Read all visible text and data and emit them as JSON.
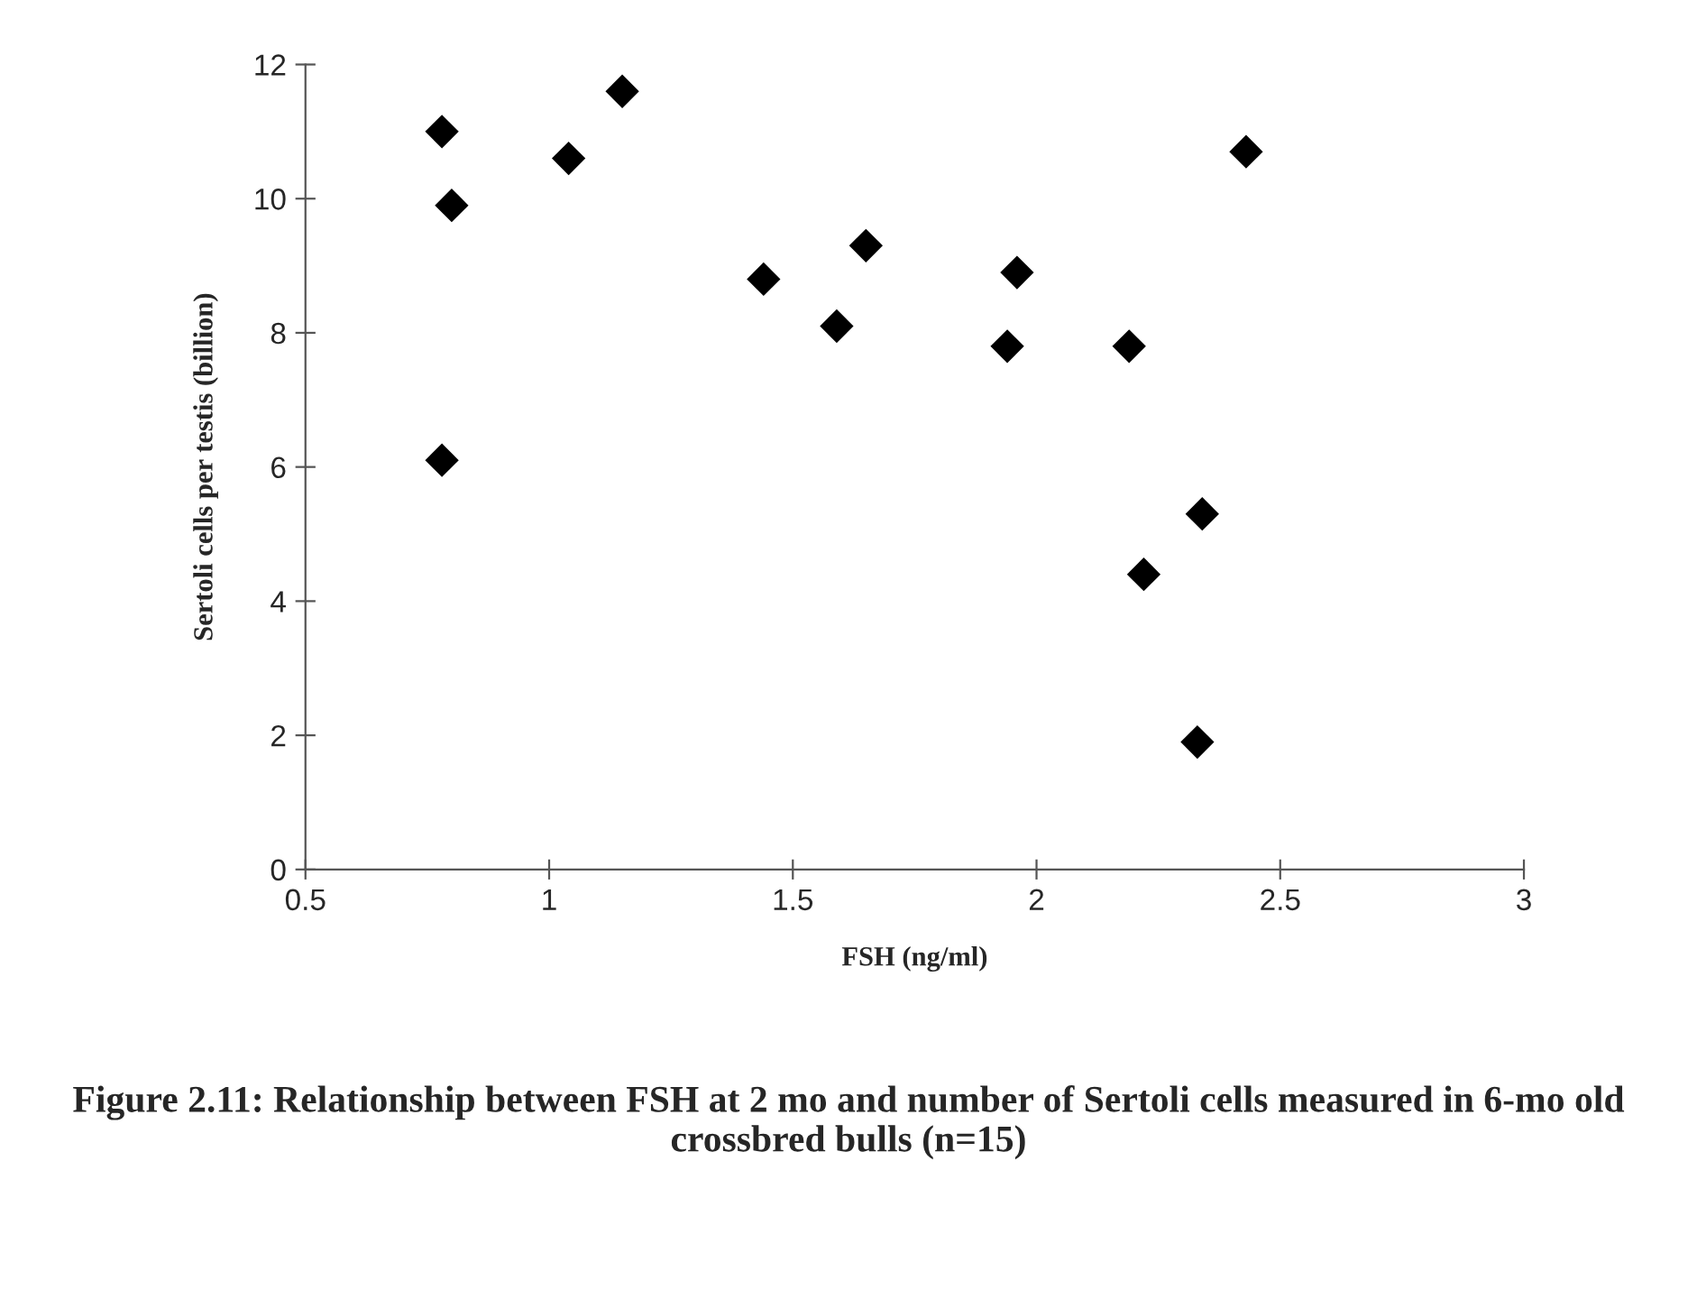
{
  "chart_data": {
    "type": "scatter",
    "xlabel": "FSH (ng/ml)",
    "ylabel": "Sertoli cells per testis (billion)",
    "x": [
      0.78,
      0.8,
      0.78,
      1.04,
      1.15,
      1.44,
      1.59,
      1.65,
      1.96,
      1.94,
      2.19,
      2.43,
      2.34,
      2.22,
      2.33
    ],
    "values": [
      11.0,
      9.9,
      6.1,
      10.6,
      11.6,
      8.8,
      8.1,
      9.3,
      8.9,
      7.8,
      7.8,
      10.7,
      5.3,
      4.4,
      1.9
    ],
    "color": "#000000",
    "marker": "diamond",
    "xlim": [
      0.5,
      3
    ],
    "xticks": [
      0.5,
      1,
      1.5,
      2,
      2.5,
      3
    ],
    "ylim": [
      0,
      12
    ],
    "yticks": [
      0,
      2,
      4,
      6,
      8,
      10,
      12
    ],
    "grid": false,
    "legend": false,
    "annotations": [
      "Figure 2.11: Relationship between FSH at 2 mo and number of Sertoli cells measured in 6-mo old crossbred bulls (n=15)"
    ]
  }
}
